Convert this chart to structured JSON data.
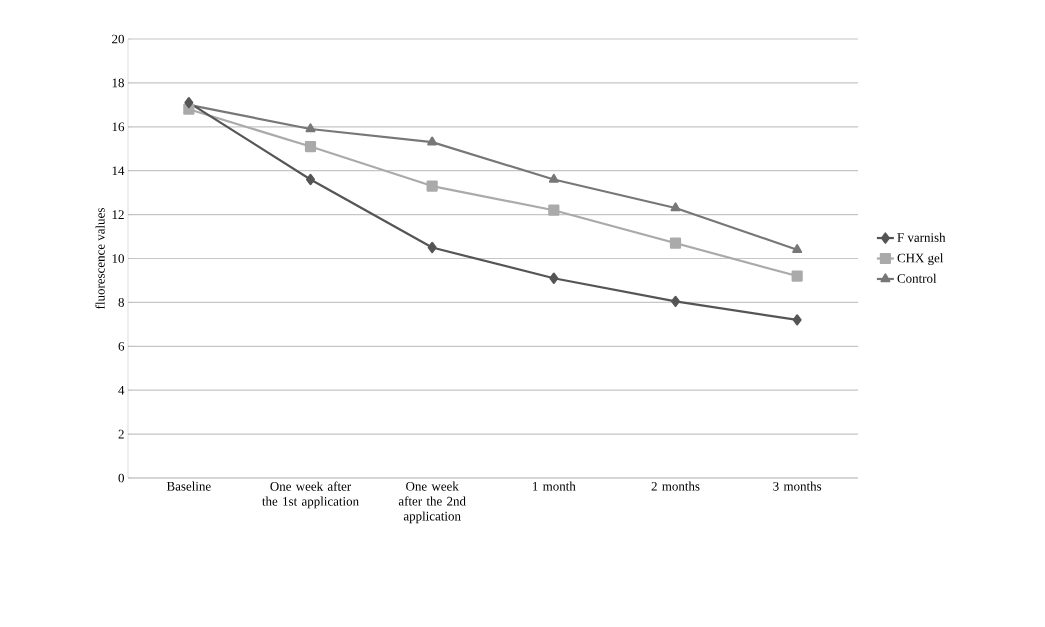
{
  "chart_data": {
    "type": "line",
    "ylabel": "fluorescence values",
    "categories": [
      "Baseline",
      "One week after the 1st application",
      "One week after the 2nd application",
      "1 month",
      "2 months",
      "3 months"
    ],
    "series": [
      {
        "name": "F varnish",
        "color": "#555555",
        "marker": "diamond",
        "values": [
          17.1,
          13.6,
          10.5,
          9.1,
          8.05,
          7.2
        ]
      },
      {
        "name": "CHX gel",
        "color": "#aaaaaa",
        "marker": "square",
        "values": [
          16.8,
          15.1,
          13.3,
          12.2,
          10.7,
          9.2
        ]
      },
      {
        "name": "Control",
        "color": "#777777",
        "marker": "triangle",
        "values": [
          17.0,
          15.9,
          15.3,
          13.6,
          12.3,
          10.4
        ]
      }
    ],
    "ylim": [
      0,
      20
    ],
    "yticks": [
      0,
      2,
      4,
      6,
      8,
      10,
      12,
      14,
      16,
      18,
      20
    ],
    "grid": "y",
    "legend": "right",
    "line_style": "solid"
  }
}
